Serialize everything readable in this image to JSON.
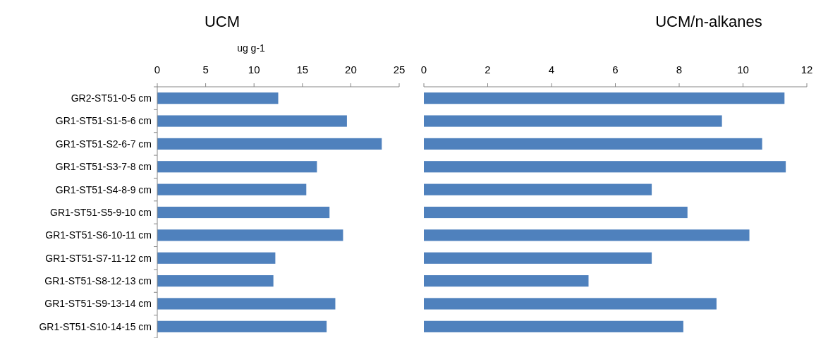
{
  "chart_data": [
    {
      "type": "bar",
      "orientation": "horizontal",
      "title": "UCM",
      "xlabel": "ug g-1",
      "categories": [
        "GR2-ST51-0-5 cm",
        "GR1-ST51-S1-5-6 cm",
        "GR1-ST51-S2-6-7 cm",
        "GR1-ST51-S3-7-8 cm",
        "GR1-ST51-S4-8-9 cm",
        "GR1-ST51-S5-9-10 cm",
        "GR1-ST51-S6-10-11 cm",
        "GR1-ST51-S7-11-12 cm",
        "GR1-ST51-S8-12-13 cm",
        "GR1-ST51-S9-13-14 cm",
        "GR1-ST51-S10-14-15 cm"
      ],
      "values": [
        12.5,
        19.6,
        23.2,
        16.5,
        15.4,
        17.8,
        19.2,
        12.2,
        12.0,
        18.4,
        17.5
      ],
      "color": "#4f81bd",
      "xlim": [
        0,
        25
      ],
      "xticks": [
        0,
        5,
        10,
        15,
        20,
        25
      ],
      "grid": false
    },
    {
      "type": "bar",
      "orientation": "horizontal",
      "title": "UCM/n-alkanes",
      "categories": [
        null,
        null,
        null,
        null,
        null,
        null,
        null,
        null,
        null,
        null,
        null
      ],
      "values": [
        11.3,
        9.34,
        10.6,
        11.34,
        7.14,
        8.26,
        10.2,
        7.14,
        5.16,
        9.17,
        8.13
      ],
      "color": "#4f81bd",
      "xlim": [
        0,
        12
      ],
      "xticks": [
        0,
        2,
        4,
        6,
        8,
        10,
        12
      ],
      "tick_labels": "x",
      "grid": false
    }
  ]
}
